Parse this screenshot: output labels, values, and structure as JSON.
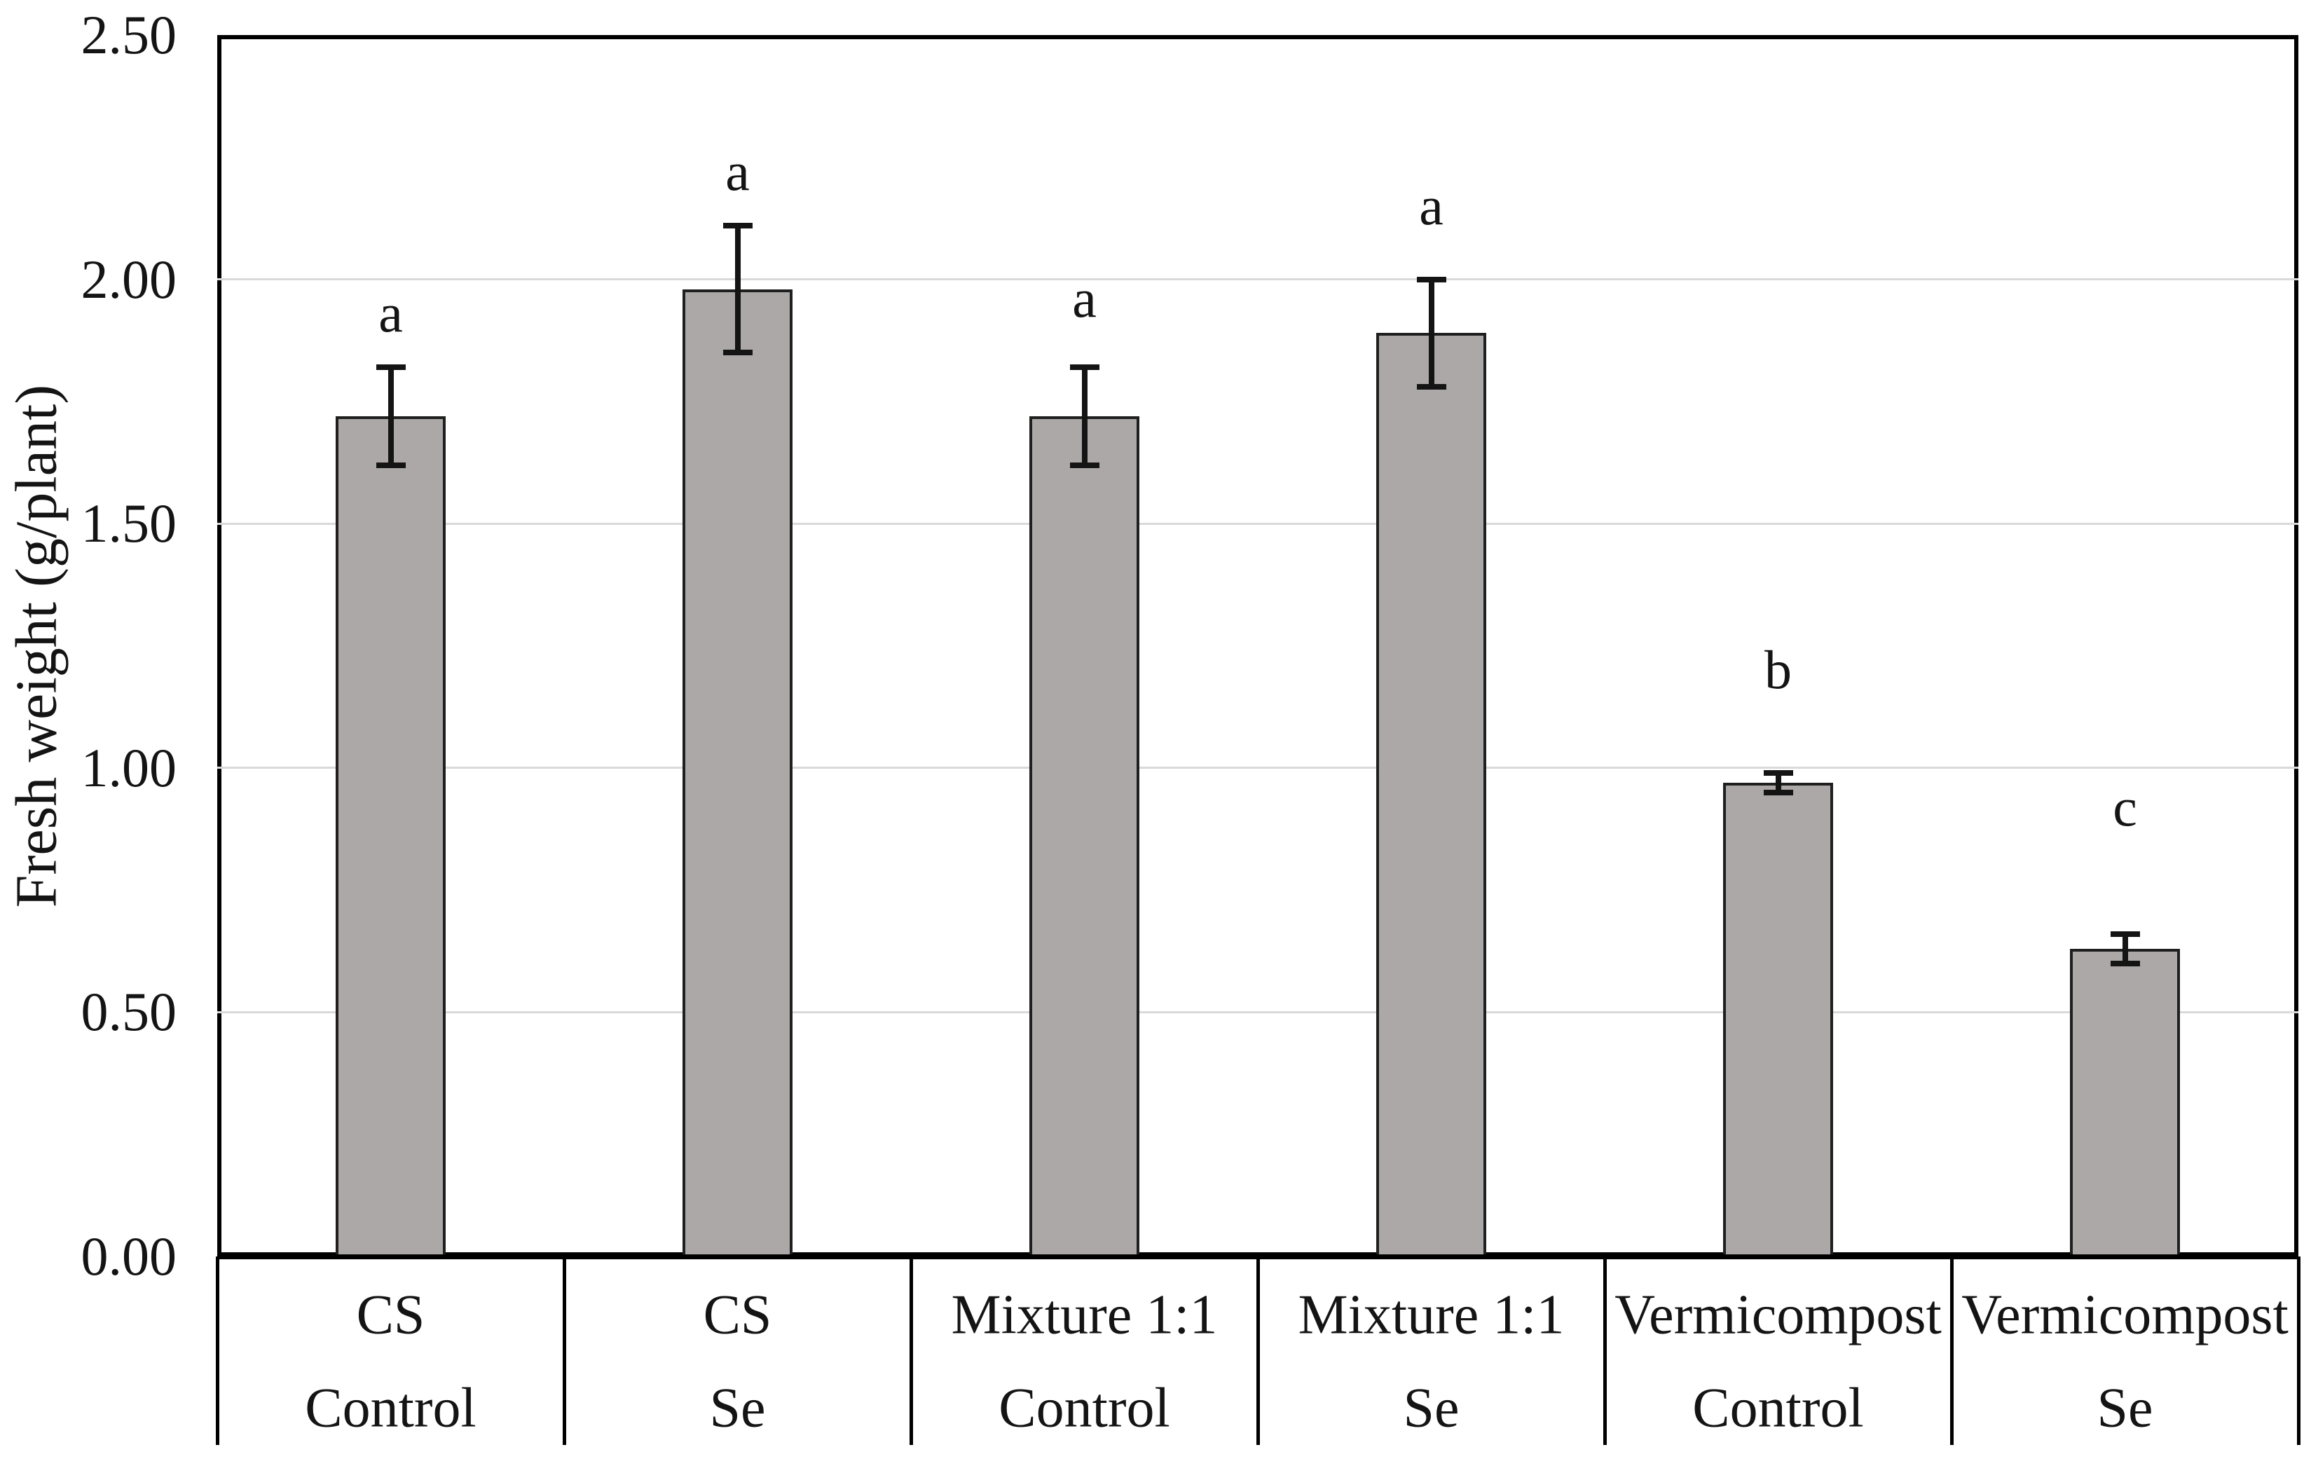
{
  "chart_data": {
    "type": "bar",
    "title": "",
    "xlabel": "",
    "ylabel": "Fresh weight (g/plant)",
    "ylim": [
      0,
      2.5
    ],
    "ytick_step": 0.5,
    "yticks": [
      "0.00",
      "0.50",
      "1.00",
      "1.50",
      "2.00",
      "2.50"
    ],
    "grid": "horizontal-major",
    "legend": "none",
    "categories": [
      {
        "line1": "CS",
        "line2": "Control"
      },
      {
        "line1": "CS",
        "line2": "Se"
      },
      {
        "line1": "Mixture 1:1",
        "line2": "Control"
      },
      {
        "line1": "Mixture 1:1",
        "line2": "Se"
      },
      {
        "line1": "Vermicompost",
        "line2": "Control"
      },
      {
        "line1": "Vermicompost",
        "line2": "Se"
      }
    ],
    "series": [
      {
        "name": "Fresh weight",
        "values": [
          1.72,
          1.98,
          1.72,
          1.89,
          0.97,
          0.63
        ],
        "errors": [
          0.1,
          0.13,
          0.1,
          0.11,
          0.02,
          0.03
        ],
        "sig_letters": [
          "a",
          "a",
          "a",
          "a",
          "b",
          "c"
        ],
        "sig_letter_y": [
          1.93,
          2.22,
          1.96,
          2.15,
          1.2,
          0.92
        ]
      }
    ],
    "colors": {
      "bar_fill": "#aca8a8",
      "bar_border": "#1f1f1f",
      "error_bar": "#141414",
      "gridline": "#d9d9d9",
      "axis": "#000000",
      "text": "#141414"
    }
  }
}
